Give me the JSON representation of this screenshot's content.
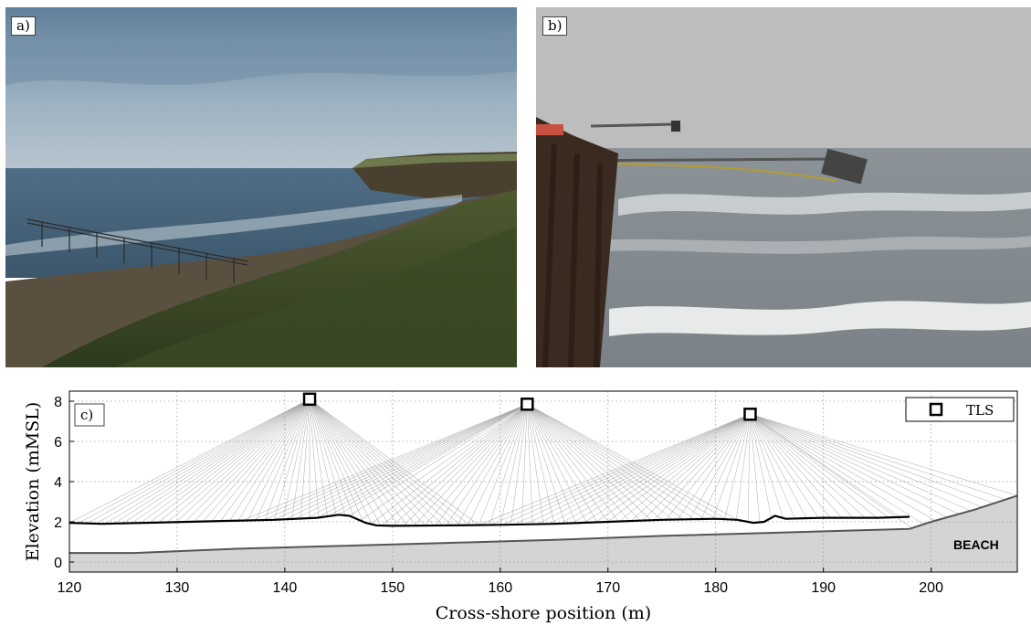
{
  "panels": {
    "a": {
      "label": "a)",
      "icon": "coastal-pier-photo"
    },
    "b": {
      "label": "b)",
      "icon": "pier-scanner-photo"
    },
    "c": {
      "label": "c)"
    }
  },
  "chart_data": {
    "type": "line",
    "label": "c)",
    "xlabel": "Cross-shore position (m)",
    "ylabel": "Elevation (mMSL)",
    "xlim": [
      120,
      208
    ],
    "ylim": [
      -0.5,
      8.5
    ],
    "xticks": [
      120,
      130,
      140,
      150,
      160,
      170,
      180,
      190,
      200
    ],
    "yticks": [
      0,
      2,
      4,
      6,
      8
    ],
    "grid": true,
    "legend": {
      "position": "top-right",
      "entries": [
        "TLS"
      ]
    },
    "annotation": "BEACH",
    "tls_positions": [
      {
        "x": 142.3,
        "y": 8.1
      },
      {
        "x": 162.5,
        "y": 7.85
      },
      {
        "x": 183.2,
        "y": 7.35
      }
    ],
    "scan_fan_extent": [
      {
        "x_from": 120,
        "x_to": 158
      },
      {
        "x_from": 136,
        "x_to": 182
      },
      {
        "x_from": 158,
        "x_to": 208
      }
    ],
    "water_surface": {
      "x": [
        120,
        123,
        127,
        131,
        135,
        139,
        143,
        145,
        146,
        147.5,
        148.5,
        150,
        155,
        160,
        165,
        170,
        175,
        180,
        182,
        183.5,
        184.5,
        185.5,
        186.5,
        190,
        195,
        198
      ],
      "y": [
        1.95,
        1.9,
        1.95,
        2.0,
        2.05,
        2.1,
        2.2,
        2.35,
        2.3,
        1.95,
        1.82,
        1.8,
        1.82,
        1.85,
        1.9,
        2.0,
        2.1,
        2.15,
        2.1,
        1.95,
        2.0,
        2.3,
        2.15,
        2.2,
        2.2,
        2.25
      ]
    },
    "beach_profile": {
      "x": [
        120,
        126,
        135,
        145,
        155,
        165,
        175,
        185,
        195,
        198,
        200,
        204,
        208
      ],
      "y": [
        0.45,
        0.45,
        0.65,
        0.8,
        0.95,
        1.1,
        1.3,
        1.45,
        1.6,
        1.65,
        2.0,
        2.6,
        3.3
      ]
    },
    "colors": {
      "water": "#000000",
      "beach_fill": "#d4d4d4",
      "rays": "#9a9a9a"
    }
  }
}
